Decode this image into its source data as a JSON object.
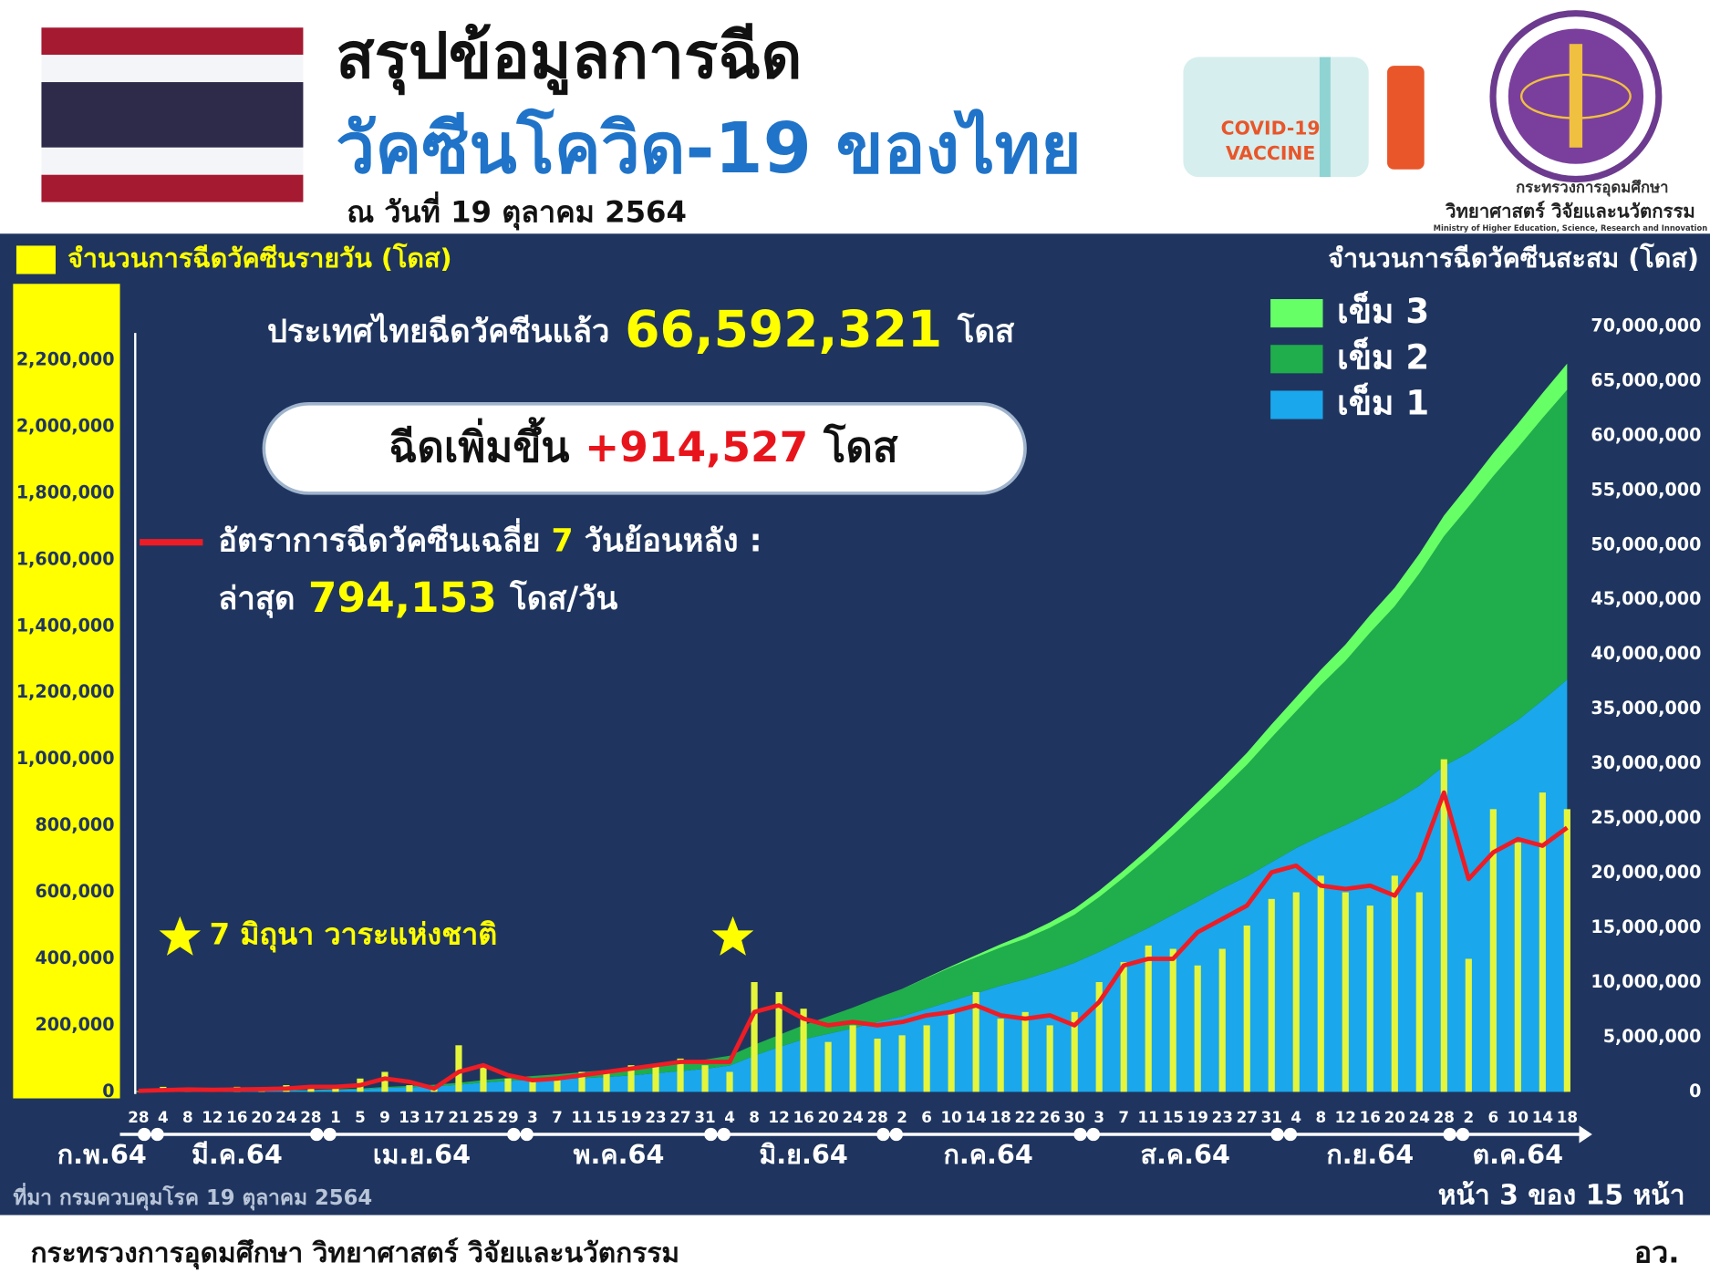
{
  "header": {
    "title": "สรุปข้อมูลการฉีด",
    "subtitle": "วัคซีนโควิด-19 ของไทย",
    "date": "ณ วันที่ 19 ตุลาคม 2564",
    "vaccine_icon": [
      "COVID-19",
      "VACCINE"
    ],
    "ministry_logo": [
      "กระทรวงการอุดมศึกษา",
      "วิทยาศาสตร์ วิจัยและนวัตกรรม",
      "Ministry of Higher Education, Science, Research and Innovation"
    ]
  },
  "summary": {
    "total_prefix": "ประเทศไทยฉีดวัคซีนแล้ว",
    "total": "66,592,321",
    "total_unit": "โดส",
    "increase_prefix": "ฉีดเพิ่มขึ้น",
    "increase": "+914,527",
    "increase_unit": "โดส",
    "avg_title_a": "อัตราการฉีดวัคซีนเฉลี่ย",
    "avg_days": "7",
    "avg_title_b": "วันย้อนหลัง :",
    "avg_latest_prefix": "ล่าสุด",
    "avg_latest": "794,153",
    "avg_latest_unit": "โดส/วัน"
  },
  "chart_data": {
    "type": "bar",
    "y_axis_label": "จำนวนการฉีดวัคซีนรายวัน (โดส)",
    "y2_axis_label": "จำนวนการฉีดวัคซีนสะสม (โดส)",
    "annotation": "7 มิถุนา วาระแห่งชาติ",
    "categories": [
      "28",
      "4",
      "8",
      "12",
      "16",
      "20",
      "24",
      "28",
      "1",
      "5",
      "9",
      "13",
      "17",
      "21",
      "25",
      "29",
      "3",
      "7",
      "11",
      "15",
      "19",
      "23",
      "27",
      "31",
      "4",
      "8",
      "12",
      "16",
      "20",
      "24",
      "28",
      "2",
      "6",
      "10",
      "14",
      "18",
      "22",
      "26",
      "30",
      "3",
      "7",
      "11",
      "15",
      "19",
      "23",
      "27",
      "31",
      "4",
      "8",
      "12",
      "16",
      "20",
      "24",
      "28",
      "2",
      "6",
      "10",
      "14",
      "18"
    ],
    "month_labels": [
      "ก.พ.64",
      "มี.ค.64",
      "เม.ย.64",
      "พ.ค.64",
      "มิ.ย.64",
      "ก.ค.64",
      "ส.ค.64",
      "ก.ย.64",
      "ต.ค.64"
    ],
    "ylim": [
      0,
      2200000
    ],
    "yticks": [
      0,
      {
        "value": 200000,
        "label": "200,000"
      },
      {
        "value": 400000,
        "label": "400,000"
      },
      {
        "value": 600000,
        "label": "600,000"
      },
      {
        "value": 800000,
        "label": "800,000"
      },
      {
        "value": 1000000,
        "label": "1,000,000"
      },
      {
        "value": 1200000,
        "label": "1,200,000"
      },
      {
        "value": 1400000,
        "label": "1,400,000"
      },
      {
        "value": 1600000,
        "label": "1,600,000"
      },
      {
        "value": 1800000,
        "label": "1,800,000"
      },
      {
        "value": 2000000,
        "label": "2,000,000"
      },
      {
        "value": 2200000,
        "label": "2,200,000"
      }
    ],
    "y2lim": [
      0,
      70000000
    ],
    "y2ticks": [
      0,
      {
        "value": 5000000,
        "label": "5,000,000"
      },
      {
        "value": 10000000,
        "label": "10,000,000"
      },
      {
        "value": 15000000,
        "label": "15,000,000"
      },
      {
        "value": 20000000,
        "label": "20,000,000"
      },
      {
        "value": 25000000,
        "label": "25,000,000"
      },
      {
        "value": 30000000,
        "label": "30,000,000"
      },
      {
        "value": 35000000,
        "label": "35,000,000"
      },
      {
        "value": 40000000,
        "label": "40,000,000"
      },
      {
        "value": 45000000,
        "label": "45,000,000"
      },
      {
        "value": 50000000,
        "label": "50,000,000"
      },
      {
        "value": 55000000,
        "label": "55,000,000"
      },
      {
        "value": 60000000,
        "label": "60,000,000"
      },
      {
        "value": 65000000,
        "label": "65,000,000"
      },
      {
        "value": 70000000,
        "label": "70,000,000"
      }
    ],
    "series": [
      {
        "name": "เข็ม 1",
        "type": "area",
        "axis": "y2",
        "color": "#1aa7ec",
        "values": [
          0,
          20000,
          30000,
          50000,
          60000,
          80000,
          100000,
          130000,
          180000,
          220000,
          350000,
          420000,
          500000,
          650000,
          850000,
          1000000,
          1100000,
          1150000,
          1250000,
          1350000,
          1500000,
          1700000,
          1900000,
          2100000,
          2400000,
          3300000,
          4100000,
          4800000,
          5300000,
          5800000,
          6400000,
          6900000,
          7600000,
          8300000,
          9000000,
          9700000,
          10300000,
          11000000,
          11800000,
          12800000,
          13900000,
          15000000,
          16200000,
          17400000,
          18600000,
          19700000,
          21000000,
          22300000,
          23400000,
          24400000,
          25500000,
          26600000,
          28000000,
          29800000,
          31000000,
          32500000,
          34000000,
          35800000,
          37700000
        ]
      },
      {
        "name": "เข็ม 2",
        "type": "area",
        "axis": "y2",
        "color": "#1fae4b",
        "values": [
          0,
          0,
          0,
          10000,
          20000,
          30000,
          40000,
          50000,
          60000,
          80000,
          100000,
          120000,
          150000,
          180000,
          220000,
          270000,
          350000,
          450000,
          550000,
          650000,
          700000,
          750000,
          800000,
          850000,
          900000,
          1000000,
          1100000,
          1300000,
          1600000,
          1900000,
          2200000,
          2500000,
          2800000,
          3100000,
          3300000,
          3500000,
          3700000,
          4000000,
          4400000,
          5000000,
          5700000,
          6500000,
          7300000,
          8200000,
          9100000,
          10200000,
          11400000,
          12500000,
          13800000,
          15000000,
          16500000,
          17800000,
          19400000,
          21000000,
          22500000,
          23800000,
          24900000,
          25800000,
          26500000
        ]
      },
      {
        "name": "เข็ม 3",
        "type": "area",
        "axis": "y2",
        "color": "#66ff66",
        "values": [
          0,
          0,
          0,
          0,
          0,
          0,
          0,
          0,
          0,
          0,
          0,
          0,
          0,
          0,
          0,
          0,
          0,
          0,
          0,
          0,
          0,
          0,
          0,
          0,
          0,
          0,
          0,
          0,
          0,
          0,
          0,
          10000,
          50000,
          100000,
          200000,
          300000,
          400000,
          500000,
          550000,
          600000,
          650000,
          700000,
          800000,
          900000,
          1000000,
          1100000,
          1200000,
          1300000,
          1400000,
          1500000,
          1600000,
          1700000,
          1800000,
          1900000,
          2000000,
          2100000,
          2200000,
          2300000,
          2400000
        ]
      },
      {
        "type": "bar",
        "color": "#e4f53c",
        "values": [
          2000,
          15000,
          10000,
          5000,
          15000,
          10000,
          20000,
          20000,
          20000,
          40000,
          60000,
          20000,
          10000,
          140000,
          80000,
          40000,
          30000,
          40000,
          60000,
          60000,
          80000,
          80000,
          100000,
          80000,
          60000,
          330000,
          300000,
          250000,
          150000,
          200000,
          160000,
          170000,
          200000,
          240000,
          300000,
          220000,
          240000,
          200000,
          240000,
          330000,
          390000,
          440000,
          430000,
          380000,
          430000,
          500000,
          580000,
          600000,
          650000,
          600000,
          560000,
          650000,
          600000,
          1000000,
          400000,
          850000,
          750000,
          900000,
          850000
        ]
      },
      {
        "type": "line",
        "color": "#ee1c25",
        "values": [
          3000,
          5000,
          7000,
          6000,
          7000,
          8000,
          10000,
          15000,
          15000,
          20000,
          40000,
          30000,
          10000,
          60000,
          80000,
          50000,
          35000,
          40000,
          50000,
          60000,
          70000,
          80000,
          90000,
          90000,
          90000,
          240000,
          260000,
          220000,
          200000,
          210000,
          200000,
          210000,
          230000,
          240000,
          260000,
          230000,
          220000,
          230000,
          200000,
          270000,
          380000,
          400000,
          400000,
          480000,
          520000,
          560000,
          660000,
          680000,
          620000,
          610000,
          620000,
          590000,
          700000,
          900000,
          640000,
          720000,
          760000,
          740000,
          794153
        ]
      }
    ]
  },
  "footer": {
    "source": "ที่มา กรมควบคุมโรค 19 ตุลาคม 2564",
    "page": "หน้า 3 ของ 15 หน้า",
    "ministry": "กระทรวงการอุดมศึกษา วิทยาศาสตร์ วิจัยและนวัตกรรม",
    "abbr": "อว."
  }
}
